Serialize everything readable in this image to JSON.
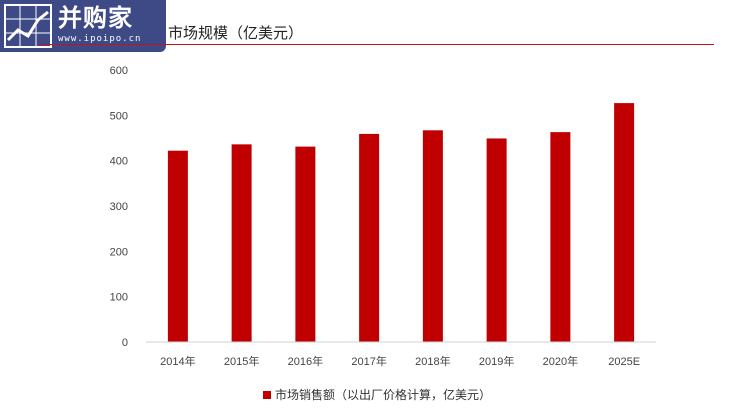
{
  "logo": {
    "name": "并购家",
    "url": "www.ipoipo.cn",
    "icon": "chart-icon"
  },
  "colors": {
    "bar": "#c00000",
    "title_rule": "#c8111e",
    "logo_bg": "#3e4a86"
  },
  "chart_data": {
    "type": "bar",
    "title": "市场规模（亿美元）",
    "categories": [
      "2014年",
      "2015年",
      "2016年",
      "2017年",
      "2018年",
      "2019年",
      "2020年",
      "2025E"
    ],
    "series": [
      {
        "name": "市场销售额（以出厂价格计算，亿美元）",
        "values": [
          422,
          436,
          431,
          459,
          467,
          449,
          463,
          527
        ]
      }
    ],
    "ylim": [
      0,
      600
    ],
    "yticks": [
      0,
      100,
      200,
      300,
      400,
      500,
      600
    ],
    "grid": false,
    "legend_position": "bottom-center"
  }
}
